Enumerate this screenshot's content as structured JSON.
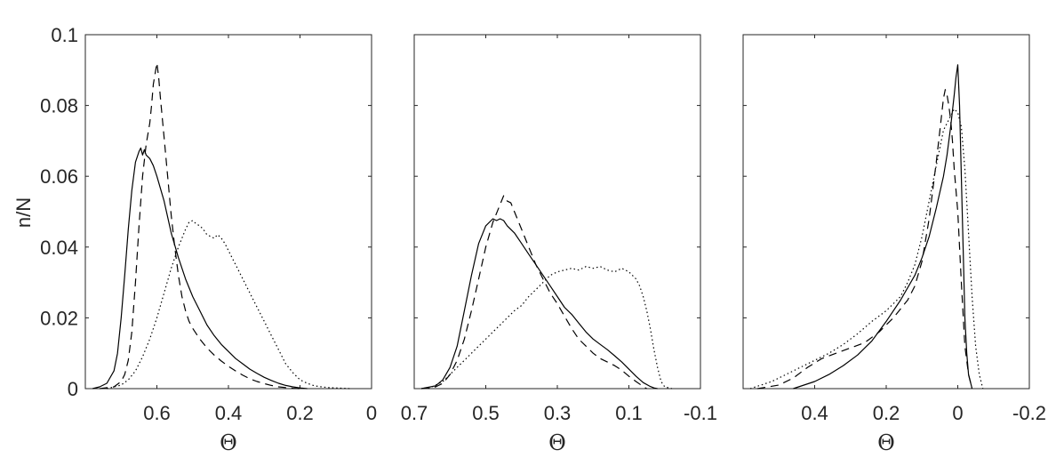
{
  "chart_data": [
    {
      "type": "line",
      "ylabel": "n/N",
      "xlabel": "Θ",
      "xlim": [
        0.8,
        0
      ],
      "ylim": [
        0,
        0.1
      ],
      "x_reversed": true,
      "xticks": [
        "0.6",
        "0.4",
        "0.2",
        "0"
      ],
      "yticks": [
        "0",
        "0.02",
        "0.04",
        "0.06",
        "0.08",
        "0.1"
      ],
      "series": [
        {
          "style": "solid",
          "x": [
            0.78,
            0.76,
            0.74,
            0.72,
            0.71,
            0.7,
            0.69,
            0.68,
            0.67,
            0.66,
            0.65,
            0.645,
            0.64,
            0.635,
            0.63,
            0.62,
            0.61,
            0.6,
            0.58,
            0.56,
            0.54,
            0.52,
            0.5,
            0.48,
            0.46,
            0.44,
            0.42,
            0.4,
            0.38,
            0.36,
            0.34,
            0.32,
            0.3,
            0.28,
            0.26,
            0.24,
            0.22,
            0.2,
            0.18
          ],
          "y": [
            0.0,
            0.0005,
            0.0015,
            0.005,
            0.01,
            0.02,
            0.032,
            0.045,
            0.056,
            0.064,
            0.067,
            0.068,
            0.066,
            0.0675,
            0.066,
            0.065,
            0.063,
            0.06,
            0.053,
            0.044,
            0.037,
            0.031,
            0.026,
            0.022,
            0.018,
            0.015,
            0.0125,
            0.0105,
            0.0085,
            0.007,
            0.0055,
            0.0043,
            0.0032,
            0.0023,
            0.0015,
            0.0009,
            0.0005,
            0.0002,
            0.0
          ]
        },
        {
          "style": "dashed",
          "x": [
            0.76,
            0.72,
            0.7,
            0.69,
            0.68,
            0.67,
            0.66,
            0.65,
            0.64,
            0.63,
            0.62,
            0.615,
            0.61,
            0.6,
            0.595,
            0.59,
            0.58,
            0.57,
            0.56,
            0.55,
            0.54,
            0.53,
            0.52,
            0.51,
            0.5,
            0.48,
            0.46,
            0.44,
            0.42,
            0.4,
            0.38,
            0.36,
            0.34,
            0.32,
            0.3,
            0.28,
            0.26,
            0.24,
            0.22,
            0.2
          ],
          "y": [
            0.0,
            0.0005,
            0.002,
            0.004,
            0.008,
            0.016,
            0.03,
            0.046,
            0.06,
            0.069,
            0.075,
            0.08,
            0.086,
            0.092,
            0.088,
            0.082,
            0.071,
            0.06,
            0.049,
            0.04,
            0.032,
            0.026,
            0.022,
            0.019,
            0.017,
            0.014,
            0.0115,
            0.0095,
            0.0078,
            0.0063,
            0.005,
            0.0038,
            0.0028,
            0.002,
            0.0014,
            0.0009,
            0.0005,
            0.0003,
            0.0001,
            0.0
          ]
        },
        {
          "style": "dotted",
          "x": [
            0.74,
            0.72,
            0.7,
            0.68,
            0.66,
            0.64,
            0.62,
            0.6,
            0.58,
            0.56,
            0.54,
            0.52,
            0.51,
            0.5,
            0.49,
            0.48,
            0.47,
            0.46,
            0.45,
            0.44,
            0.43,
            0.42,
            0.41,
            0.4,
            0.39,
            0.38,
            0.36,
            0.34,
            0.32,
            0.3,
            0.28,
            0.26,
            0.24,
            0.22,
            0.2,
            0.18,
            0.16,
            0.14,
            0.12,
            0.1,
            0.08,
            0.06
          ],
          "y": [
            0.0,
            0.0005,
            0.001,
            0.0025,
            0.005,
            0.009,
            0.014,
            0.02,
            0.027,
            0.034,
            0.04,
            0.045,
            0.047,
            0.0475,
            0.0465,
            0.046,
            0.045,
            0.0435,
            0.043,
            0.0425,
            0.0435,
            0.0425,
            0.041,
            0.039,
            0.037,
            0.035,
            0.031,
            0.027,
            0.023,
            0.019,
            0.015,
            0.011,
            0.007,
            0.0045,
            0.0025,
            0.0015,
            0.0008,
            0.0005,
            0.0003,
            0.0002,
            0.0001,
            0.0
          ]
        }
      ]
    },
    {
      "type": "line",
      "xlabel": "Θ",
      "xlim": [
        0.7,
        -0.1
      ],
      "ylim": [
        0,
        0.1
      ],
      "x_reversed": true,
      "xticks": [
        "0.7",
        "0.5",
        "0.3",
        "0.1",
        "-0.1"
      ],
      "series": [
        {
          "style": "solid",
          "x": [
            0.68,
            0.64,
            0.62,
            0.6,
            0.58,
            0.56,
            0.54,
            0.52,
            0.5,
            0.48,
            0.47,
            0.46,
            0.45,
            0.44,
            0.42,
            0.4,
            0.38,
            0.36,
            0.34,
            0.32,
            0.3,
            0.28,
            0.26,
            0.24,
            0.22,
            0.2,
            0.18,
            0.16,
            0.14,
            0.12,
            0.1,
            0.08,
            0.06,
            0.04,
            0.03,
            0.02
          ],
          "y": [
            0.0,
            0.0008,
            0.0025,
            0.006,
            0.012,
            0.022,
            0.032,
            0.041,
            0.046,
            0.048,
            0.0475,
            0.048,
            0.0475,
            0.046,
            0.044,
            0.041,
            0.038,
            0.035,
            0.032,
            0.029,
            0.026,
            0.023,
            0.021,
            0.0185,
            0.016,
            0.014,
            0.0125,
            0.011,
            0.0093,
            0.0075,
            0.0055,
            0.0035,
            0.0017,
            0.0006,
            0.0002,
            0.0
          ]
        },
        {
          "style": "dashed",
          "x": [
            0.68,
            0.64,
            0.62,
            0.6,
            0.58,
            0.56,
            0.54,
            0.52,
            0.5,
            0.48,
            0.46,
            0.45,
            0.44,
            0.43,
            0.42,
            0.4,
            0.38,
            0.36,
            0.34,
            0.32,
            0.3,
            0.28,
            0.26,
            0.24,
            0.22,
            0.2,
            0.18,
            0.16,
            0.14,
            0.12,
            0.1,
            0.08,
            0.06,
            0.05
          ],
          "y": [
            0.0,
            0.0005,
            0.0015,
            0.004,
            0.008,
            0.014,
            0.022,
            0.031,
            0.04,
            0.047,
            0.052,
            0.0545,
            0.053,
            0.0525,
            0.05,
            0.045,
            0.04,
            0.035,
            0.031,
            0.027,
            0.024,
            0.0205,
            0.017,
            0.014,
            0.012,
            0.01,
            0.0085,
            0.0075,
            0.0065,
            0.0052,
            0.0035,
            0.002,
            0.0006,
            0.0
          ]
        },
        {
          "style": "dotted",
          "x": [
            0.66,
            0.62,
            0.6,
            0.58,
            0.56,
            0.54,
            0.52,
            0.5,
            0.48,
            0.46,
            0.44,
            0.42,
            0.4,
            0.38,
            0.36,
            0.34,
            0.32,
            0.3,
            0.28,
            0.26,
            0.24,
            0.22,
            0.2,
            0.18,
            0.16,
            0.14,
            0.12,
            0.1,
            0.08,
            0.07,
            0.06,
            0.05,
            0.04,
            0.03,
            0.02,
            0.01,
            0.0,
            -0.02
          ],
          "y": [
            0.0,
            0.002,
            0.004,
            0.006,
            0.008,
            0.01,
            0.012,
            0.014,
            0.016,
            0.018,
            0.02,
            0.022,
            0.0235,
            0.026,
            0.028,
            0.03,
            0.032,
            0.033,
            0.0335,
            0.034,
            0.0335,
            0.0345,
            0.034,
            0.0345,
            0.0335,
            0.033,
            0.034,
            0.033,
            0.031,
            0.029,
            0.026,
            0.022,
            0.017,
            0.011,
            0.006,
            0.002,
            0.0005,
            0.0
          ]
        }
      ]
    },
    {
      "type": "line",
      "xlabel": "Θ",
      "xlim": [
        0.6,
        -0.2
      ],
      "ylim": [
        0,
        0.1
      ],
      "x_reversed": true,
      "xticks": [
        "0.4",
        "0.2",
        "0",
        "-0.2"
      ],
      "series": [
        {
          "style": "solid",
          "x": [
            0.46,
            0.4,
            0.36,
            0.32,
            0.28,
            0.24,
            0.2,
            0.16,
            0.12,
            0.1,
            0.08,
            0.06,
            0.04,
            0.03,
            0.02,
            0.01,
            0.005,
            0.0,
            -0.005,
            -0.01,
            -0.015,
            -0.02,
            -0.025,
            -0.03,
            -0.04
          ],
          "y": [
            0.0,
            0.002,
            0.004,
            0.0065,
            0.0095,
            0.0135,
            0.019,
            0.025,
            0.032,
            0.037,
            0.043,
            0.051,
            0.06,
            0.066,
            0.074,
            0.083,
            0.088,
            0.0915,
            0.08,
            0.06,
            0.04,
            0.02,
            0.01,
            0.004,
            0.0
          ]
        },
        {
          "style": "dashed",
          "x": [
            0.56,
            0.5,
            0.46,
            0.42,
            0.38,
            0.34,
            0.3,
            0.26,
            0.22,
            0.18,
            0.14,
            0.12,
            0.1,
            0.08,
            0.06,
            0.05,
            0.04,
            0.035,
            0.03,
            0.025,
            0.02,
            0.015,
            0.01,
            0.0,
            -0.01,
            -0.02,
            -0.03,
            -0.04
          ],
          "y": [
            0.0,
            0.001,
            0.003,
            0.006,
            0.0085,
            0.01,
            0.0115,
            0.013,
            0.016,
            0.02,
            0.025,
            0.029,
            0.036,
            0.048,
            0.064,
            0.073,
            0.082,
            0.0845,
            0.083,
            0.08,
            0.076,
            0.07,
            0.062,
            0.05,
            0.03,
            0.012,
            0.004,
            0.0
          ]
        },
        {
          "style": "dotted",
          "x": [
            0.58,
            0.52,
            0.48,
            0.44,
            0.4,
            0.36,
            0.32,
            0.28,
            0.24,
            0.2,
            0.16,
            0.14,
            0.12,
            0.1,
            0.08,
            0.06,
            0.04,
            0.02,
            0.01,
            0.0,
            -0.01,
            -0.02,
            -0.03,
            -0.04,
            -0.05,
            -0.06,
            -0.07
          ],
          "y": [
            0.0,
            0.002,
            0.004,
            0.006,
            0.008,
            0.01,
            0.0125,
            0.0155,
            0.019,
            0.022,
            0.026,
            0.03,
            0.035,
            0.043,
            0.053,
            0.063,
            0.073,
            0.077,
            0.079,
            0.078,
            0.074,
            0.062,
            0.044,
            0.026,
            0.012,
            0.004,
            0.0
          ]
        }
      ]
    }
  ]
}
